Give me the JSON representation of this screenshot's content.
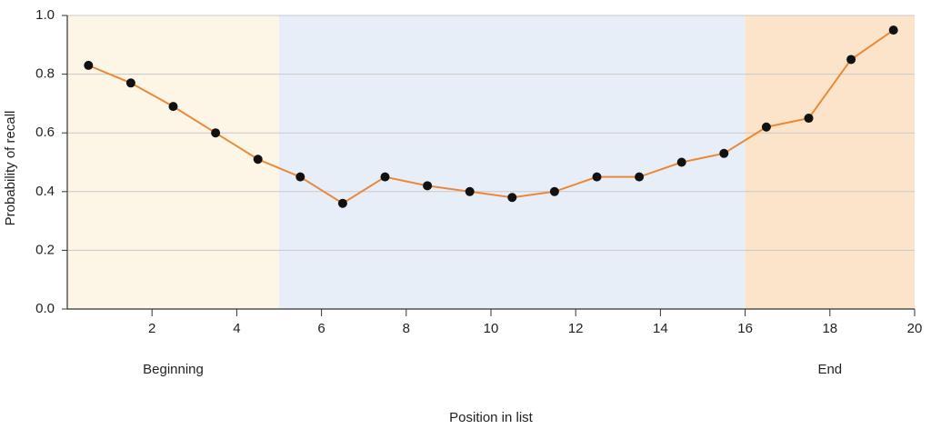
{
  "chart_data": {
    "type": "line",
    "x_label": "Position in list",
    "y_label": "Probability of recall",
    "x": [
      0.5,
      1.5,
      2.5,
      3.5,
      4.5,
      5.5,
      6.5,
      7.5,
      8.5,
      9.5,
      10.5,
      11.5,
      12.5,
      13.5,
      14.5,
      15.5,
      16.5,
      17.5,
      18.5,
      19.5
    ],
    "values": [
      0.83,
      0.77,
      0.69,
      0.6,
      0.51,
      0.45,
      0.36,
      0.45,
      0.42,
      0.4,
      0.38,
      0.4,
      0.45,
      0.45,
      0.5,
      0.53,
      0.62,
      0.65,
      0.85,
      0.95
    ],
    "color": "#e8893a",
    "marker_color": "#111111",
    "xlim": [
      0,
      20
    ],
    "ylim": [
      0,
      1
    ],
    "xticks": [
      2,
      4,
      6,
      8,
      10,
      12,
      14,
      16,
      18,
      20
    ],
    "yticks": [
      {
        "value": 0,
        "label": "0.0"
      },
      0.2,
      0.4,
      0.6,
      0.8,
      {
        "value": 1,
        "label": "1.0"
      }
    ],
    "grid": true,
    "regions": [
      {
        "start": 0,
        "end": 5,
        "color": "#fdf6e6",
        "label": "Beginning"
      },
      {
        "start": 5,
        "end": 16,
        "color": "#e7eef8"
      },
      {
        "start": 16,
        "end": 20,
        "color": "#fbe4ca",
        "label": "End"
      }
    ]
  }
}
